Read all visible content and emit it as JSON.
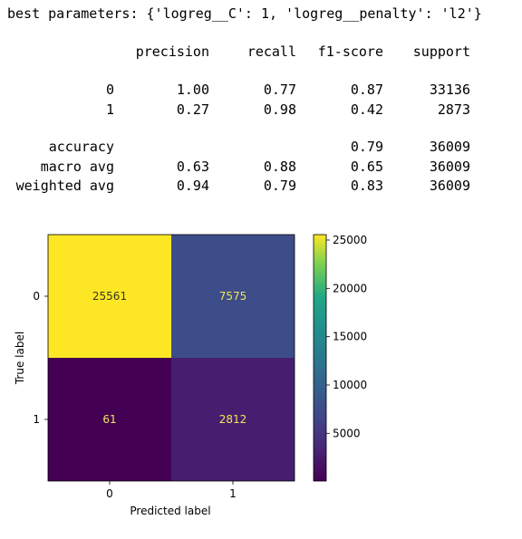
{
  "output": {
    "best_params": "best parameters: {'logreg__C': 1, 'logreg__penalty': 'l2'}",
    "report": {
      "headers": [
        "precision",
        "recall",
        "f1-score",
        "support"
      ],
      "class_rows": [
        {
          "label": "0",
          "precision": "1.00",
          "recall": "0.77",
          "f1": "0.87",
          "support": "33136"
        },
        {
          "label": "1",
          "precision": "0.27",
          "recall": "0.98",
          "f1": "0.42",
          "support": "2873"
        }
      ],
      "accuracy": {
        "label": "accuracy",
        "f1": "0.79",
        "support": "36009"
      },
      "avg_rows": [
        {
          "label": "macro avg",
          "precision": "0.63",
          "recall": "0.88",
          "f1": "0.65",
          "support": "36009"
        },
        {
          "label": "weighted avg",
          "precision": "0.94",
          "recall": "0.79",
          "f1": "0.83",
          "support": "36009"
        }
      ]
    }
  },
  "chart_data": {
    "type": "heatmap",
    "xlabel": "Predicted label",
    "ylabel": "True label",
    "x_ticks": [
      "0",
      "1"
    ],
    "y_ticks": [
      "0",
      "1"
    ],
    "values": [
      [
        25561,
        7575
      ],
      [
        61,
        2812
      ]
    ],
    "colormap": "viridis",
    "colorbar": {
      "min": 61,
      "max": 25561,
      "ticks": [
        5000,
        10000,
        15000,
        20000,
        25000
      ]
    },
    "colors": {
      "high": "#fde725",
      "mid_high": "#3b648d",
      "mid_low": "#472d7b",
      "low": "#440154"
    }
  }
}
